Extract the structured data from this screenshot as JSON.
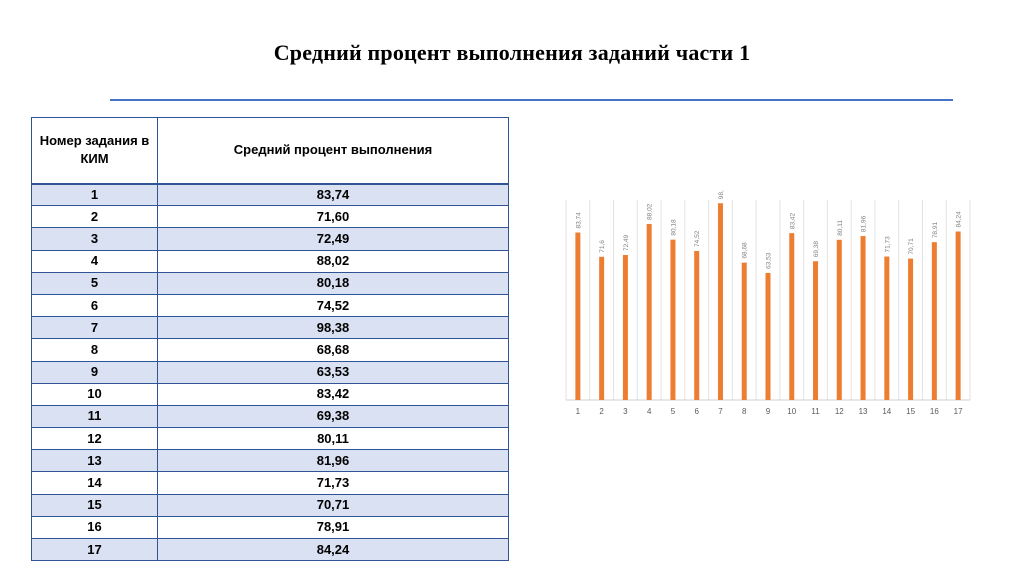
{
  "slide": {
    "title": "Средний процент выполнения заданий части 1"
  },
  "table": {
    "headers": [
      "Номер задания в КИМ",
      "Средний процент выполнения"
    ],
    "rows": [
      {
        "num": "1",
        "pct": "83,74"
      },
      {
        "num": "2",
        "pct": "71,60"
      },
      {
        "num": "3",
        "pct": "72,49"
      },
      {
        "num": "4",
        "pct": "88,02"
      },
      {
        "num": "5",
        "pct": "80,18"
      },
      {
        "num": "6",
        "pct": "74,52"
      },
      {
        "num": "7",
        "pct": "98,38"
      },
      {
        "num": "8",
        "pct": "68,68"
      },
      {
        "num": "9",
        "pct": "63,53"
      },
      {
        "num": "10",
        "pct": "83,42"
      },
      {
        "num": "11",
        "pct": "69,38"
      },
      {
        "num": "12",
        "pct": "80,11"
      },
      {
        "num": "13",
        "pct": "81,96"
      },
      {
        "num": "14",
        "pct": "71,73"
      },
      {
        "num": "15",
        "pct": "70,71"
      },
      {
        "num": "16",
        "pct": "78,91"
      },
      {
        "num": "17",
        "pct": "84,24"
      }
    ]
  },
  "chart_data": {
    "type": "bar",
    "categories": [
      "1",
      "2",
      "3",
      "4",
      "5",
      "6",
      "7",
      "8",
      "9",
      "10",
      "11",
      "12",
      "13",
      "14",
      "15",
      "16",
      "17"
    ],
    "values": [
      83.74,
      71.6,
      72.49,
      88.02,
      80.18,
      74.52,
      98.38,
      68.68,
      63.53,
      83.42,
      69.38,
      80.11,
      81.96,
      71.73,
      70.71,
      78.91,
      84.24
    ],
    "data_labels": [
      "83,74",
      "71,6",
      "72,49",
      "88,02",
      "80,18",
      "74,52",
      "98,38",
      "68,68",
      "63,53",
      "83,42",
      "69,38",
      "80,11",
      "81,96",
      "71,73",
      "70,71",
      "78,91",
      "84,24"
    ],
    "title": "",
    "xlabel": "",
    "ylabel": "",
    "ylim": [
      0,
      100
    ],
    "grid": "vertical-between-categories",
    "legend": "none",
    "bar_color": "#ed7d31"
  },
  "colors": {
    "accent": "#4472c4",
    "table_border": "#2f5597",
    "row_band": "#d9e1f2"
  }
}
